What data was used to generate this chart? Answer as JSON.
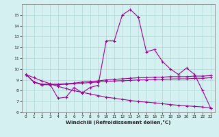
{
  "line1_x": [
    0,
    1,
    2,
    3,
    4,
    5,
    6,
    7,
    8,
    9,
    10,
    11,
    12,
    13,
    14,
    15,
    16,
    17,
    18,
    19,
    20,
    21,
    22,
    23
  ],
  "line1_y": [
    9.5,
    8.8,
    8.55,
    8.6,
    7.3,
    7.4,
    8.3,
    7.8,
    8.3,
    8.5,
    12.6,
    12.6,
    15.0,
    15.5,
    14.8,
    11.6,
    11.8,
    10.7,
    10.0,
    9.5,
    10.1,
    9.5,
    8.0,
    6.4
  ],
  "line2_x": [
    0,
    1,
    2,
    3,
    4,
    5,
    6,
    7,
    8,
    9,
    10,
    11,
    12,
    13,
    14,
    15,
    16,
    17,
    18,
    19,
    20,
    21,
    22,
    23
  ],
  "line2_y": [
    9.5,
    8.8,
    8.6,
    8.6,
    8.6,
    8.65,
    8.7,
    8.8,
    8.85,
    8.9,
    9.0,
    9.05,
    9.1,
    9.15,
    9.2,
    9.2,
    9.25,
    9.25,
    9.3,
    9.3,
    9.3,
    9.35,
    9.35,
    9.4
  ],
  "line3_x": [
    0,
    1,
    2,
    3,
    4,
    5,
    6,
    7,
    8,
    9,
    10,
    11,
    12,
    13,
    14,
    15,
    16,
    17,
    18,
    19,
    20,
    21,
    22,
    23
  ],
  "line3_y": [
    9.5,
    8.8,
    8.55,
    8.55,
    8.55,
    8.6,
    8.65,
    8.7,
    8.75,
    8.8,
    8.85,
    8.9,
    8.92,
    8.95,
    9.0,
    9.0,
    9.05,
    9.05,
    9.08,
    9.1,
    9.1,
    9.15,
    9.15,
    9.2
  ],
  "line4_x": [
    0,
    1,
    2,
    3,
    4,
    5,
    6,
    7,
    8,
    9,
    10,
    11,
    12,
    13,
    14,
    15,
    16,
    17,
    18,
    19,
    20,
    21,
    22,
    23
  ],
  "line4_y": [
    9.5,
    9.2,
    8.9,
    8.65,
    8.4,
    8.2,
    8.0,
    7.85,
    7.7,
    7.55,
    7.4,
    7.3,
    7.2,
    7.1,
    7.0,
    6.95,
    6.88,
    6.8,
    6.72,
    6.65,
    6.6,
    6.55,
    6.5,
    6.4
  ],
  "line_color": "#990099",
  "bg_color": "#d4f0f0",
  "grid_color": "#b0d8d8",
  "xlabel": "Windchill (Refroidissement éolien,°C)",
  "xlim": [
    -0.5,
    23.5
  ],
  "ylim": [
    6,
    16
  ],
  "yticks": [
    6,
    7,
    8,
    9,
    10,
    11,
    12,
    13,
    14,
    15
  ],
  "xticks": [
    0,
    1,
    2,
    3,
    4,
    5,
    6,
    7,
    8,
    9,
    10,
    11,
    12,
    13,
    14,
    15,
    16,
    17,
    18,
    19,
    20,
    21,
    22,
    23
  ]
}
